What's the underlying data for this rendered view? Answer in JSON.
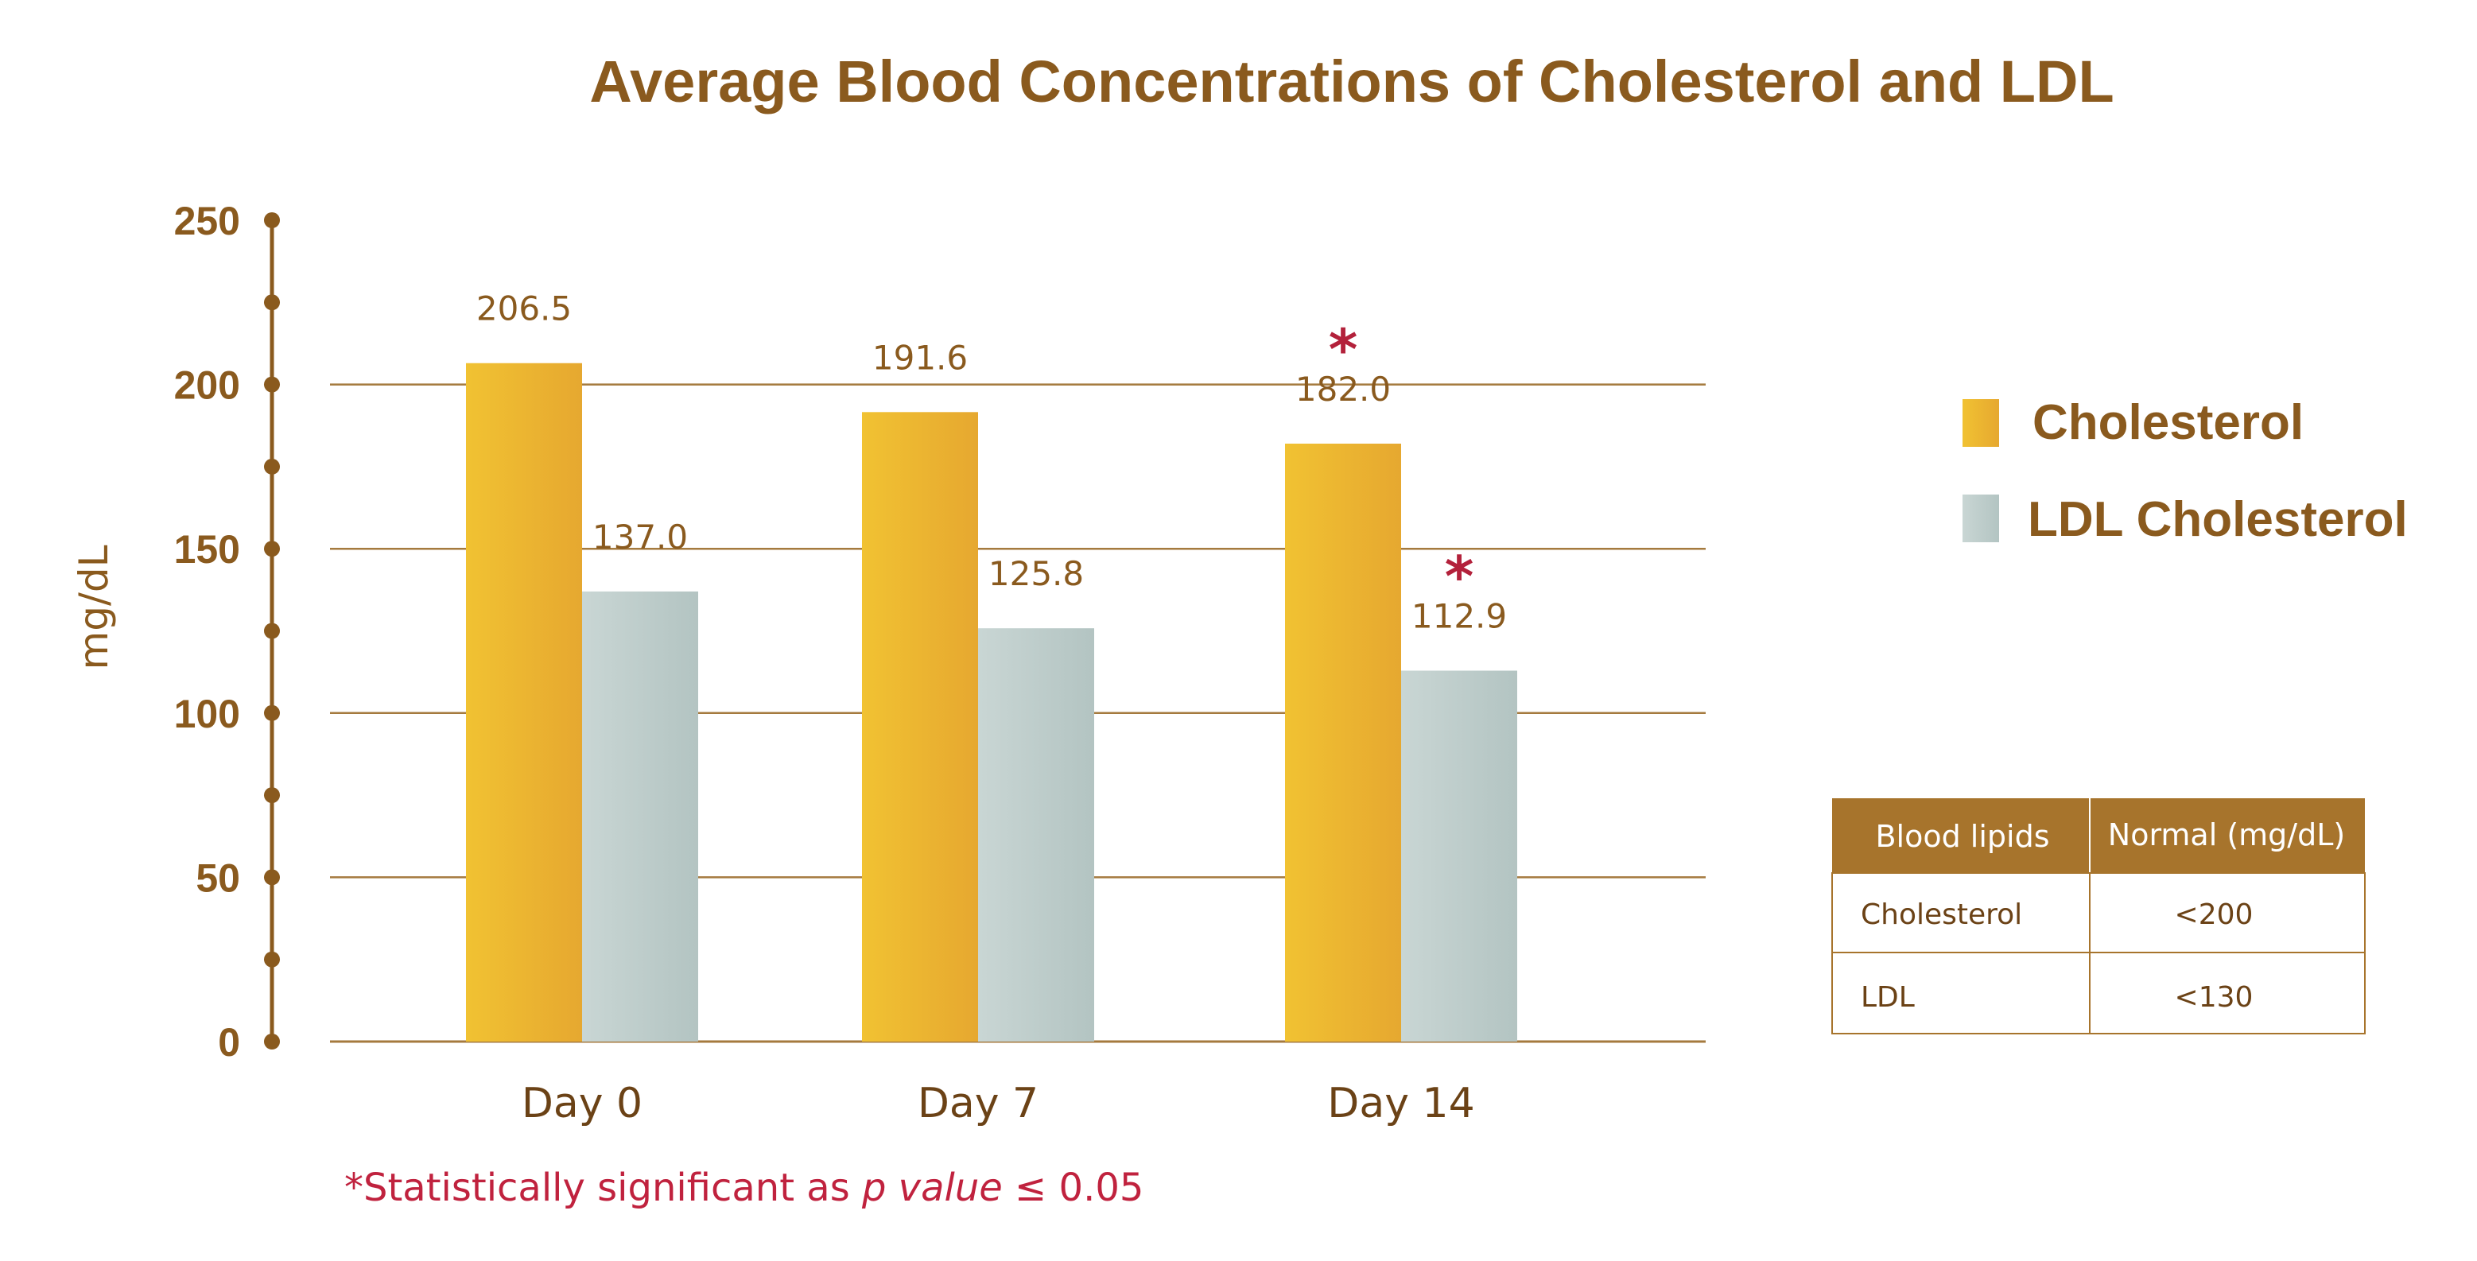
{
  "chart_data": {
    "type": "bar",
    "title": "Average Blood Concentrations of Cholesterol and LDL",
    "ylabel": "mg/dL",
    "xlabel": "",
    "ylim": [
      0,
      250
    ],
    "yticks": [
      "0",
      "50",
      "100",
      "150",
      "200",
      "250"
    ],
    "categories": [
      "Day 0",
      "Day 7",
      "Day 14"
    ],
    "series": [
      {
        "name": "Cholesterol",
        "values": [
          206.5,
          191.6,
          182.0
        ],
        "labels": [
          "206.5",
          "191.6",
          "182.0"
        ],
        "significant": [
          false,
          false,
          true
        ]
      },
      {
        "name": "LDL Cholesterol",
        "values": [
          137.0,
          125.8,
          112.9
        ],
        "labels": [
          "137.0",
          "125.8",
          "112.9"
        ],
        "significant": [
          false,
          false,
          true
        ]
      }
    ],
    "significance_marker": "*",
    "grid": true,
    "legend_position": "right",
    "colors": {
      "cholesterol_light": "#f1c232",
      "cholesterol_dark": "#e6a830",
      "ldl_light": "#c9d6d4",
      "ldl_dark": "#b3c4c2",
      "text": "#8a5a1e",
      "accent": "#c0223e",
      "table_header": "#a7742c"
    }
  },
  "footnote": {
    "prefix": "*Statistically significant as ",
    "italic": "p value",
    "suffix": " ≤ 0.05"
  },
  "reference_table": {
    "headers": [
      "Blood lipids",
      "Normal (mg/dL)"
    ],
    "rows": [
      [
        "Cholesterol",
        "<200"
      ],
      [
        "LDL",
        "<130"
      ]
    ]
  }
}
